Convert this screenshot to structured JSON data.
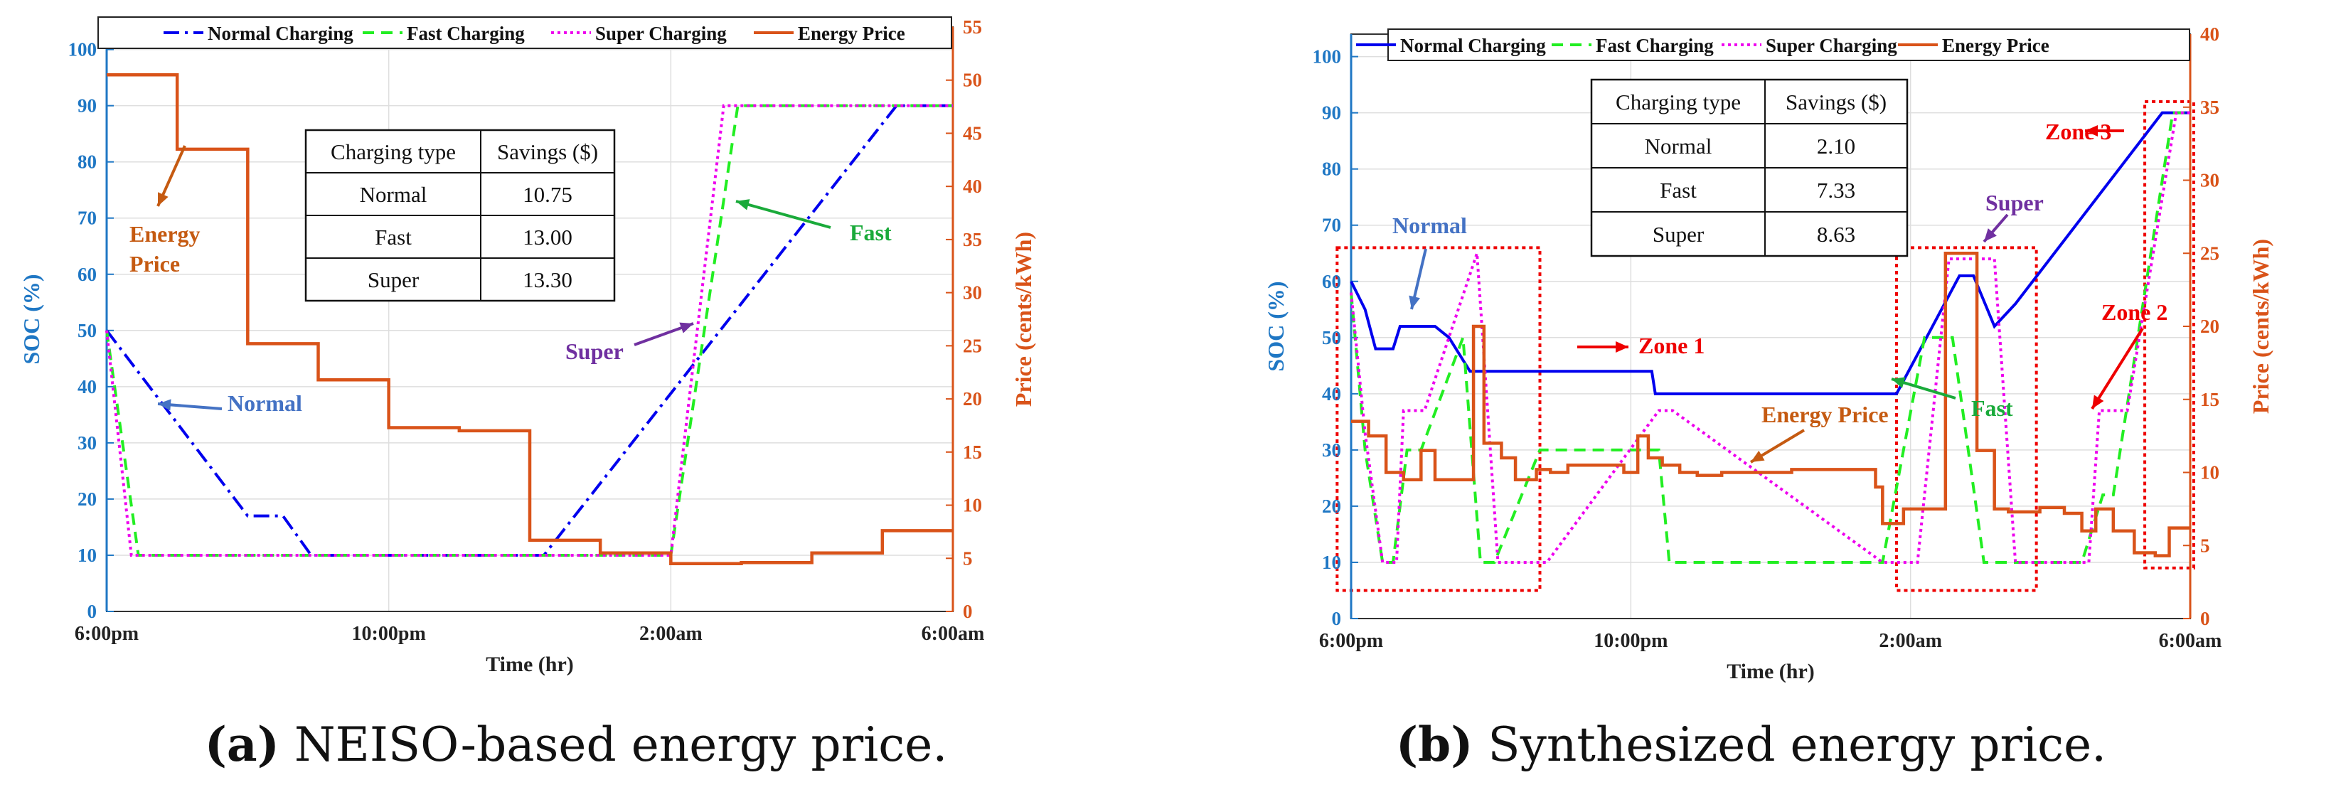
{
  "colors": {
    "soc_axis": "#1f77c4",
    "price_axis": "#d95319",
    "normal": "#0000ee",
    "fast": "#22ee22",
    "super": "#ee00ee",
    "price": "#d95319",
    "zone": "#ee0000",
    "annot_normal": "#4472c4",
    "annot_fast": "#1aaa3a",
    "annot_super": "#7030a0",
    "annot_price": "#c55a11",
    "annot_zone": "#ee0000",
    "grid": "#dedede"
  },
  "chart_data": [
    {
      "type": "line",
      "xlabel": "Time (hr)",
      "ylabel": "SOC (%)",
      "y2label": "Price (cents/kWh)",
      "xlim": [
        0,
        12
      ],
      "ylim": [
        0,
        104
      ],
      "y2lim": [
        0,
        55
      ],
      "x_ticks": [
        0,
        4,
        8,
        12
      ],
      "x_tick_labels": [
        "6:00pm",
        "10:00pm",
        "2:00am",
        "6:00am"
      ],
      "y_ticks": [
        0,
        10,
        20,
        30,
        40,
        50,
        60,
        70,
        80,
        90,
        100
      ],
      "y_tick_labels": [
        "0",
        "10",
        "20",
        "30",
        "40",
        "50",
        "60",
        "70",
        "80",
        "90",
        "100"
      ],
      "y2_ticks": [
        0,
        5,
        10,
        15,
        20,
        25,
        30,
        35,
        40,
        45,
        50,
        55
      ],
      "y2_tick_labels": [
        "0",
        "5",
        "10",
        "15",
        "20",
        "25",
        "30",
        "35",
        "40",
        "45",
        "50",
        "55"
      ],
      "grid": true,
      "legend": [
        "Normal Charging",
        "Fast Charging",
        "Super Charging",
        "Energy Price"
      ],
      "legend_position": "top",
      "series": [
        {
          "name": "Normal Charging",
          "axis": "left",
          "style": "dashdot",
          "color_key": "normal",
          "x": [
            0,
            2,
            2.5,
            2.9,
            3,
            6,
            6.2,
            11.2,
            12
          ],
          "y": [
            50,
            17,
            17,
            10,
            10,
            10,
            10,
            90,
            90
          ]
        },
        {
          "name": "Fast Charging",
          "axis": "left",
          "style": "dashed",
          "color_key": "fast",
          "x": [
            0,
            0.45,
            8,
            8.95,
            12
          ],
          "y": [
            50,
            10,
            10,
            90,
            90
          ]
        },
        {
          "name": "Super Charging",
          "axis": "left",
          "style": "dotted",
          "color_key": "super",
          "x": [
            0,
            0.35,
            8,
            8.75,
            12
          ],
          "y": [
            50,
            10,
            10,
            90,
            90
          ]
        },
        {
          "name": "Energy Price",
          "axis": "right",
          "style": "step",
          "color_key": "price",
          "x": [
            0,
            1,
            1,
            2,
            2,
            3,
            3,
            4,
            4,
            5,
            5,
            6,
            6,
            7,
            7,
            8,
            8,
            9,
            9,
            10,
            10,
            11,
            11,
            12
          ],
          "y": [
            50.5,
            50.5,
            43.5,
            43.5,
            25.2,
            25.2,
            21.8,
            21.8,
            17.3,
            17.3,
            17.0,
            17.0,
            6.7,
            6.7,
            5.5,
            5.5,
            4.5,
            4.5,
            4.6,
            4.6,
            5.5,
            5.5,
            7.6,
            7.6
          ]
        }
      ],
      "annotations": [
        {
          "text": "Energy",
          "color_key": "annot_price"
        },
        {
          "text": "Price",
          "color_key": "annot_price"
        },
        {
          "text": "Normal",
          "color_key": "annot_normal"
        },
        {
          "text": "Super",
          "color_key": "annot_super"
        },
        {
          "text": "Fast",
          "color_key": "annot_fast"
        }
      ],
      "table": {
        "headers": [
          "Charging type",
          "Savings ($)"
        ],
        "rows": [
          [
            "Normal",
            "10.75"
          ],
          [
            "Fast",
            "13.00"
          ],
          [
            "Super",
            "13.30"
          ]
        ]
      },
      "caption_bold": "(a)",
      "caption_text": " NEISO-based energy price."
    },
    {
      "type": "line",
      "xlabel": "Time (hr)",
      "ylabel": "SOC (%)",
      "y2label": "Price (cents/kWh)",
      "xlim": [
        0,
        12
      ],
      "ylim": [
        0,
        104
      ],
      "y2lim": [
        0,
        40
      ],
      "x_ticks": [
        0,
        4,
        8,
        12
      ],
      "x_tick_labels": [
        "6:00pm",
        "10:00pm",
        "2:00am",
        "6:00am"
      ],
      "y_ticks": [
        0,
        10,
        20,
        30,
        40,
        50,
        60,
        70,
        80,
        90,
        100
      ],
      "y_tick_labels": [
        "0",
        "10",
        "20",
        "30",
        "40",
        "50",
        "60",
        "70",
        "80",
        "90",
        "100"
      ],
      "y2_ticks": [
        0,
        5,
        10,
        15,
        20,
        25,
        30,
        35,
        40
      ],
      "y2_tick_labels": [
        "0",
        "5",
        "10",
        "15",
        "20",
        "25",
        "30",
        "35",
        "40"
      ],
      "grid": true,
      "legend": [
        "Normal Charging",
        "Fast Charging",
        "Super Charging",
        "Energy Price"
      ],
      "legend_position": "top",
      "series": [
        {
          "name": "Normal Charging",
          "axis": "left",
          "style": "solid",
          "color_key": "normal",
          "x": [
            0,
            0.2,
            0.35,
            0.6,
            0.7,
            1.2,
            1.4,
            1.7,
            1.75,
            4.3,
            4.35,
            7.8,
            8.7,
            8.9,
            9.2,
            9.5,
            11.6,
            12
          ],
          "y": [
            60,
            55,
            48,
            48,
            52,
            52,
            50,
            44,
            44,
            44,
            40,
            40,
            61,
            61,
            52,
            56,
            90,
            90
          ]
        },
        {
          "name": "Fast Charging",
          "axis": "left",
          "style": "dashed",
          "color_key": "fast",
          "x": [
            0,
            0.2,
            0.45,
            0.6,
            0.8,
            1.0,
            1.6,
            1.85,
            2.05,
            2.7,
            4.4,
            4.55,
            7.6,
            8.2,
            8.6,
            9.05,
            9.5,
            10.45,
            10.75,
            10.9,
            11.75,
            12
          ],
          "y": [
            58,
            30,
            10,
            10,
            30,
            30,
            50,
            10,
            10,
            30,
            30,
            10,
            10,
            50,
            50,
            10,
            10,
            10,
            22,
            22,
            90,
            90
          ]
        },
        {
          "name": "Super Charging",
          "axis": "left",
          "style": "dotted",
          "color_key": "super",
          "x": [
            0,
            0.2,
            0.45,
            0.65,
            0.75,
            1.05,
            1.8,
            2.1,
            2.8,
            4.4,
            4.6,
            7.6,
            8.1,
            8.55,
            9.2,
            9.5,
            10.55,
            10.7,
            11.1,
            11.8,
            12
          ],
          "y": [
            58,
            33,
            10,
            10,
            37,
            37,
            65,
            10,
            10,
            37,
            37,
            10,
            10,
            64,
            64,
            10,
            10,
            37,
            37,
            90,
            90
          ]
        },
        {
          "name": "Energy Price",
          "axis": "right",
          "style": "step",
          "color_key": "price",
          "x": [
            0,
            0.25,
            0.25,
            0.5,
            0.5,
            0.75,
            0.75,
            1.0,
            1.0,
            1.2,
            1.2,
            1.75,
            1.75,
            1.9,
            1.9,
            2.15,
            2.15,
            2.35,
            2.35,
            2.65,
            2.65,
            2.85,
            2.85,
            3.1,
            3.1,
            3.9,
            3.9,
            4.1,
            4.1,
            4.25,
            4.25,
            4.45,
            4.45,
            4.7,
            4.7,
            4.95,
            4.95,
            5.1,
            5.1,
            5.3,
            5.3,
            5.6,
            5.6,
            6.3,
            6.3,
            7.5,
            7.5,
            7.6,
            7.6,
            7.9,
            7.9,
            8.5,
            8.5,
            8.95,
            8.95,
            9.2,
            9.2,
            9.4,
            9.4,
            9.85,
            9.85,
            10.2,
            10.2,
            10.45,
            10.45,
            10.65,
            10.65,
            10.9,
            10.9,
            11.2,
            11.2,
            11.5,
            11.5,
            11.7,
            11.7,
            12
          ],
          "y": [
            13.5,
            13.5,
            12.5,
            12.5,
            10,
            10,
            9.5,
            9.5,
            11.5,
            11.5,
            9.5,
            9.5,
            20,
            20,
            12,
            12,
            11,
            11,
            9.5,
            9.5,
            10.2,
            10.2,
            10,
            10,
            10.5,
            10.5,
            10,
            10,
            12.5,
            12.5,
            11,
            11,
            10.5,
            10.5,
            10,
            10,
            9.8,
            9.8,
            9.8,
            9.8,
            10,
            10,
            10,
            10,
            10.2,
            10.2,
            9,
            9,
            6.5,
            6.5,
            7.5,
            7.5,
            25,
            25,
            11.5,
            11.5,
            7.5,
            7.5,
            7.3,
            7.3,
            7.6,
            7.6,
            7.2,
            7.2,
            6,
            6,
            7.5,
            7.5,
            6,
            6,
            4.5,
            4.5,
            4.3,
            4.3,
            6.2,
            6.2
          ]
        }
      ],
      "annotations": [
        {
          "text": "Normal",
          "color_key": "annot_normal"
        },
        {
          "text": "Zone 1",
          "color_key": "annot_zone"
        },
        {
          "text": "Energy Price",
          "color_key": "annot_price"
        },
        {
          "text": "Super",
          "color_key": "annot_super"
        },
        {
          "text": "Fast",
          "color_key": "annot_fast"
        },
        {
          "text": "Zone 2",
          "color_key": "annot_zone"
        },
        {
          "text": "Zone 3",
          "color_key": "annot_zone"
        }
      ],
      "zones": [
        {
          "x0": -0.2,
          "x1": 2.7,
          "y0": 5,
          "y1": 66
        },
        {
          "x0": 7.8,
          "x1": 9.8,
          "y0": 5,
          "y1": 66
        },
        {
          "x0": 11.35,
          "x1": 12.05,
          "y0": 9,
          "y1": 92
        }
      ],
      "table": {
        "headers": [
          "Charging type",
          "Savings ($)"
        ],
        "rows": [
          [
            "Normal",
            "2.10"
          ],
          [
            "Fast",
            "7.33"
          ],
          [
            "Super",
            "8.63"
          ]
        ]
      },
      "caption_bold": "(b)",
      "caption_text": " Synthesized energy price."
    }
  ]
}
